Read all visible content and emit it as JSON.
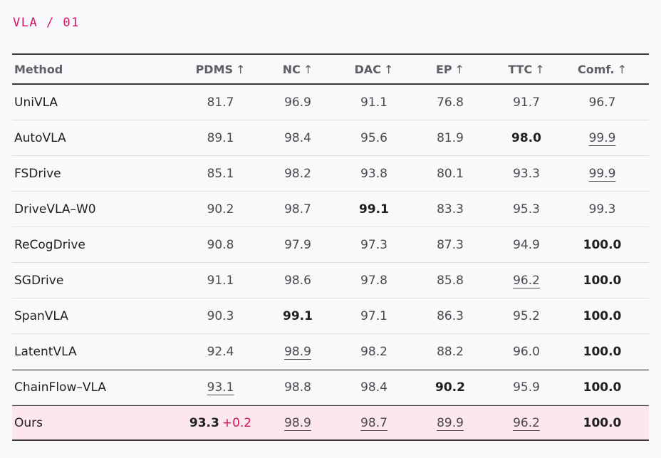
{
  "eyebrow": "VLA / 01",
  "columns": {
    "method": "Method",
    "pdms": "PDMS",
    "nc": "NC",
    "dac": "DAC",
    "ep": "EP",
    "ttc": "TTC",
    "comf": "Comf.",
    "arrow": "↑"
  },
  "rows": [
    {
      "method": "UniVLA",
      "pdms": "81.7",
      "nc": "96.9",
      "dac": "91.1",
      "ep": "76.8",
      "ttc": "91.7",
      "comf": "96.7"
    },
    {
      "method": "AutoVLA",
      "pdms": "89.1",
      "nc": "98.4",
      "dac": "95.6",
      "ep": "81.9",
      "ttc": "98.0",
      "comf": "99.9"
    },
    {
      "method": "FSDrive",
      "pdms": "85.1",
      "nc": "98.2",
      "dac": "93.8",
      "ep": "80.1",
      "ttc": "93.3",
      "comf": "99.9"
    },
    {
      "method": "DriveVLA–W0",
      "pdms": "90.2",
      "nc": "98.7",
      "dac": "99.1",
      "ep": "83.3",
      "ttc": "95.3",
      "comf": "99.3"
    },
    {
      "method": "ReCogDrive",
      "pdms": "90.8",
      "nc": "97.9",
      "dac": "97.3",
      "ep": "87.3",
      "ttc": "94.9",
      "comf": "100.0"
    },
    {
      "method": "SGDrive",
      "pdms": "91.1",
      "nc": "98.6",
      "dac": "97.8",
      "ep": "85.8",
      "ttc": "96.2",
      "comf": "100.0"
    },
    {
      "method": "SpanVLA",
      "pdms": "90.3",
      "nc": "99.1",
      "dac": "97.1",
      "ep": "86.3",
      "ttc": "95.2",
      "comf": "100.0"
    },
    {
      "method": "LatentVLA",
      "pdms": "92.4",
      "nc": "98.9",
      "dac": "98.2",
      "ep": "88.2",
      "ttc": "96.0",
      "comf": "100.0"
    },
    {
      "method": "ChainFlow–VLA",
      "pdms": "93.1",
      "nc": "98.8",
      "dac": "98.4",
      "ep": "90.2",
      "ttc": "95.9",
      "comf": "100.0"
    },
    {
      "method": "Ours",
      "pdms": "93.3",
      "pdms_delta": "+0.2",
      "nc": "98.9",
      "dac": "98.7",
      "ep": "89.9",
      "ttc": "96.2",
      "comf": "100.0"
    }
  ],
  "colors": {
    "accent": "#d0155f",
    "highlight_row": "#fce7ec"
  }
}
